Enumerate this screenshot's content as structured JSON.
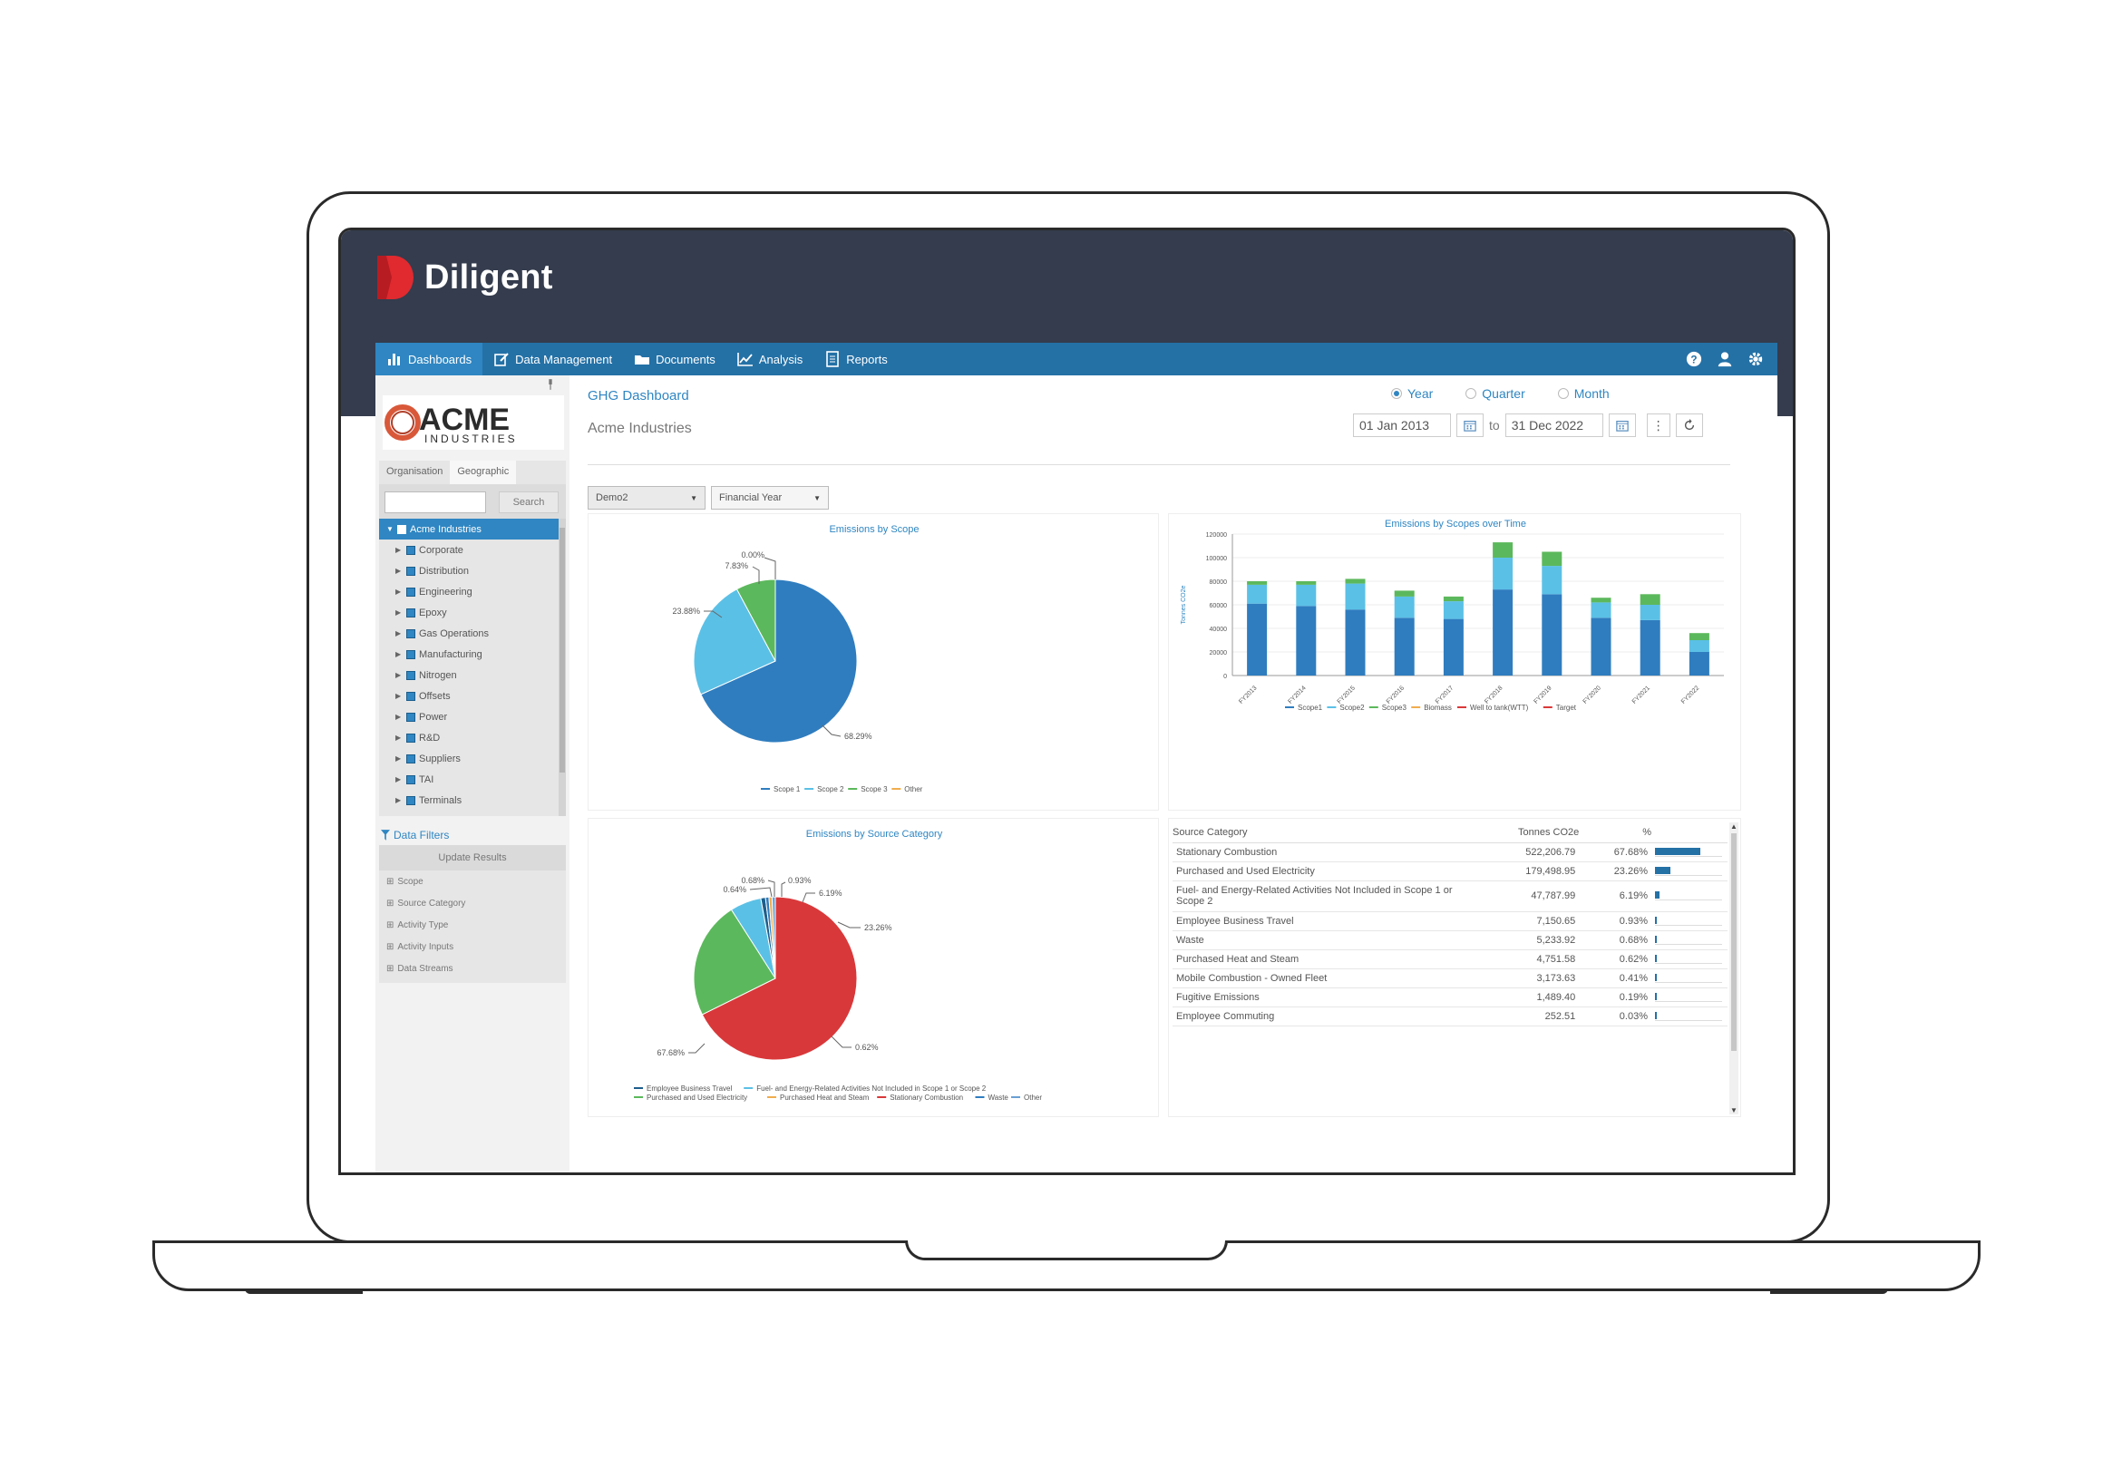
{
  "brand": {
    "name": "Diligent"
  },
  "nav": {
    "items": [
      {
        "label": "Dashboards",
        "icon": "bar-chart-icon"
      },
      {
        "label": "Data Management",
        "icon": "edit-icon"
      },
      {
        "label": "Documents",
        "icon": "folder-icon"
      },
      {
        "label": "Analysis",
        "icon": "line-chart-icon"
      },
      {
        "label": "Reports",
        "icon": "report-icon"
      }
    ],
    "right_icons": [
      "help-icon",
      "user-icon",
      "gear-icon"
    ]
  },
  "sidebar": {
    "logo": {
      "word": "ACME",
      "sub": "INDUSTRIES"
    },
    "tabs": [
      "Organisation",
      "Geographic"
    ],
    "search": {
      "value": "",
      "button": "Search"
    },
    "tree": {
      "root": "Acme Industries",
      "children": [
        "Corporate",
        "Distribution",
        "Engineering",
        "Epoxy",
        "Gas Operations",
        "Manufacturing",
        "Nitrogen",
        "Offsets",
        "Power",
        "R&D",
        "Suppliers",
        "TAI",
        "Terminals"
      ]
    },
    "filters": {
      "title": "Data Filters",
      "update_button": "Update Results",
      "items": [
        "Scope",
        "Source Category",
        "Activity Type",
        "Activity Inputs",
        "Data Streams"
      ]
    }
  },
  "header": {
    "title": "GHG Dashboard",
    "subtitle": "Acme Industries",
    "period_options": [
      "Year",
      "Quarter",
      "Month"
    ],
    "period_selected": "Year",
    "date_from": "01 Jan 2013",
    "date_to_label": "to",
    "date_to": "31 Dec 2022",
    "more": "⋮"
  },
  "filters_bar": {
    "dataset": "Demo2",
    "period_type": "Financial Year"
  },
  "colors": {
    "scope1": "#2f7dbf",
    "scope2": "#5bc0e6",
    "scope3": "#5cb85c",
    "red": "#d9383a",
    "orange": "#f0ad4e",
    "nav": "#2471a6"
  },
  "chart_data": [
    {
      "type": "pie",
      "title": "Emissions by Scope",
      "slices": [
        {
          "name": "Scope 1",
          "value": 68.29,
          "label": "68.29%",
          "color": "#2f7dbf"
        },
        {
          "name": "Scope 2",
          "value": 23.88,
          "label": "23.88%",
          "color": "#5bc0e6"
        },
        {
          "name": "Scope 3",
          "value": 7.83,
          "label": "7.83%",
          "color": "#5cb85c"
        },
        {
          "name": "Other",
          "value": 0.0,
          "label": "0.00%",
          "color": "#f0ad4e"
        }
      ],
      "legend": [
        "Scope 1",
        "Scope 2",
        "Scope 3",
        "Other"
      ],
      "legend_placement": "bottom"
    },
    {
      "type": "bar",
      "stacked": true,
      "title": "Emissions by Scopes over Time",
      "ylabel": "Tonnes CO2e",
      "ylim": [
        0,
        120000
      ],
      "yticks": [
        0,
        20000,
        40000,
        60000,
        80000,
        100000,
        120000
      ],
      "categories": [
        "FY2013",
        "FY2014",
        "FY2015",
        "FY2016",
        "FY2017",
        "FY2018",
        "FY2019",
        "FY2020",
        "FY2021",
        "FY2022"
      ],
      "series": [
        {
          "name": "Scope1",
          "color": "#2f7dbf",
          "values": [
            61000,
            59000,
            56000,
            49000,
            48000,
            73000,
            69000,
            49000,
            47000,
            20000
          ]
        },
        {
          "name": "Scope2",
          "color": "#5bc0e6",
          "values": [
            16000,
            18000,
            22000,
            18000,
            15000,
            27000,
            24000,
            13000,
            13000,
            10000
          ]
        },
        {
          "name": "Scope3",
          "color": "#5cb85c",
          "values": [
            3000,
            3000,
            4000,
            5000,
            4000,
            13000,
            12000,
            4000,
            9000,
            6000
          ]
        },
        {
          "name": "Biomass",
          "color": "#f0ad4e",
          "values": [
            0,
            0,
            0,
            0,
            0,
            0,
            0,
            0,
            0,
            0
          ]
        },
        {
          "name": "Well to tank(WTT)",
          "color": "#d9383a",
          "values": [
            0,
            0,
            0,
            0,
            0,
            0,
            0,
            0,
            0,
            0
          ]
        },
        {
          "name": "Target",
          "color": "#d9383a",
          "values": [
            0,
            0,
            0,
            0,
            0,
            0,
            0,
            0,
            0,
            0
          ]
        }
      ],
      "legend": [
        "Scope1",
        "Scope2",
        "Scope3",
        "Biomass",
        "Well to tank(WTT)",
        "Target"
      ],
      "legend_placement": "bottom"
    },
    {
      "type": "pie",
      "title": "Emissions by Source Category",
      "slices": [
        {
          "name": "Stationary Combustion",
          "value": 67.68,
          "label": "67.68%",
          "color": "#d9383a"
        },
        {
          "name": "Purchased and Used Electricity",
          "value": 23.26,
          "label": "23.26%",
          "color": "#5cb85c"
        },
        {
          "name": "Fuel- and Energy-Related Activities Not Included in Scope 1 or Scope 2",
          "value": 6.19,
          "label": "6.19%",
          "color": "#5bc0e6"
        },
        {
          "name": "Employee Business Travel",
          "value": 0.93,
          "label": "0.93%",
          "color": "#1d5e8c"
        },
        {
          "name": "Waste",
          "value": 0.68,
          "label": "0.68%",
          "color": "#2f7dbf"
        },
        {
          "name": "Purchased Heat and Steam",
          "value": 0.62,
          "label": "0.62%",
          "color": "#f0ad4e"
        },
        {
          "name": "Other",
          "value": 0.64,
          "label": "0.64%",
          "color": "#6aa0d4"
        }
      ],
      "legend": [
        "Employee Business Travel",
        "Fuel- and Energy-Related Activities Not Included in Scope 1 or Scope 2",
        "Purchased and Used Electricity",
        "Purchased Heat and Steam",
        "Stationary Combustion",
        "Waste",
        "Other"
      ],
      "legend_placement": "bottom"
    },
    {
      "type": "table",
      "columns": [
        "Source Category",
        "Tonnes CO2e",
        "%"
      ],
      "rows": [
        {
          "category": "Stationary Combustion",
          "tonnes": "522,206.79",
          "pct": "67.68%",
          "fraction": 0.6768
        },
        {
          "category": "Purchased and Used Electricity",
          "tonnes": "179,498.95",
          "pct": "23.26%",
          "fraction": 0.2326
        },
        {
          "category": "Fuel- and Energy-Related Activities Not Included in Scope 1 or Scope 2",
          "tonnes": "47,787.99",
          "pct": "6.19%",
          "fraction": 0.0619
        },
        {
          "category": "Employee Business Travel",
          "tonnes": "7,150.65",
          "pct": "0.93%",
          "fraction": 0.0093
        },
        {
          "category": "Waste",
          "tonnes": "5,233.92",
          "pct": "0.68%",
          "fraction": 0.0068
        },
        {
          "category": "Purchased Heat and Steam",
          "tonnes": "4,751.58",
          "pct": "0.62%",
          "fraction": 0.0062
        },
        {
          "category": "Mobile Combustion - Owned Fleet",
          "tonnes": "3,173.63",
          "pct": "0.41%",
          "fraction": 0.0041
        },
        {
          "category": "Fugitive Emissions",
          "tonnes": "1,489.40",
          "pct": "0.19%",
          "fraction": 0.0019
        },
        {
          "category": "Employee Commuting",
          "tonnes": "252.51",
          "pct": "0.03%",
          "fraction": 0.0003
        }
      ]
    }
  ]
}
